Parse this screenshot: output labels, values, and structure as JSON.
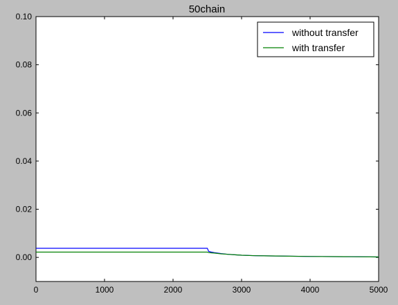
{
  "chart_data": {
    "type": "line",
    "title": "50chain",
    "xlabel": "",
    "ylabel": "",
    "xlim": [
      0,
      5000
    ],
    "ylim": [
      -0.01,
      0.1
    ],
    "xticks": [
      0,
      1000,
      2000,
      3000,
      4000,
      5000
    ],
    "xtick_labels": [
      "0",
      "1000",
      "2000",
      "3000",
      "4000",
      "5000"
    ],
    "yticks": [
      0.0,
      0.02,
      0.04,
      0.06,
      0.08,
      0.1
    ],
    "ytick_labels": [
      "0.00",
      "0.02",
      "0.04",
      "0.06",
      "0.08",
      "0.10"
    ],
    "grid": false,
    "legend_position": "top-right",
    "series": [
      {
        "name": "without transfer",
        "color": "#0000ff",
        "x": [
          0,
          2480,
          2500,
          2520,
          2560,
          2600,
          2700,
          2800,
          2900,
          3000,
          3200,
          3500,
          4000,
          4500,
          5000
        ],
        "y": [
          0.0038,
          0.0038,
          0.0038,
          0.0025,
          0.0022,
          0.002,
          0.0016,
          0.0013,
          0.0011,
          0.0009,
          0.0007,
          0.0006,
          0.0004,
          0.0003,
          0.0002
        ]
      },
      {
        "name": "with transfer",
        "color": "#008000",
        "x": [
          0,
          2480,
          2500,
          2520,
          2560,
          2600,
          2700,
          2800,
          2900,
          3000,
          3200,
          3500,
          4000,
          4500,
          5000
        ],
        "y": [
          0.0022,
          0.0022,
          0.0022,
          0.002,
          0.0019,
          0.0018,
          0.0015,
          0.0013,
          0.0011,
          0.0009,
          0.0007,
          0.0006,
          0.0004,
          0.0003,
          0.0002
        ]
      }
    ]
  }
}
